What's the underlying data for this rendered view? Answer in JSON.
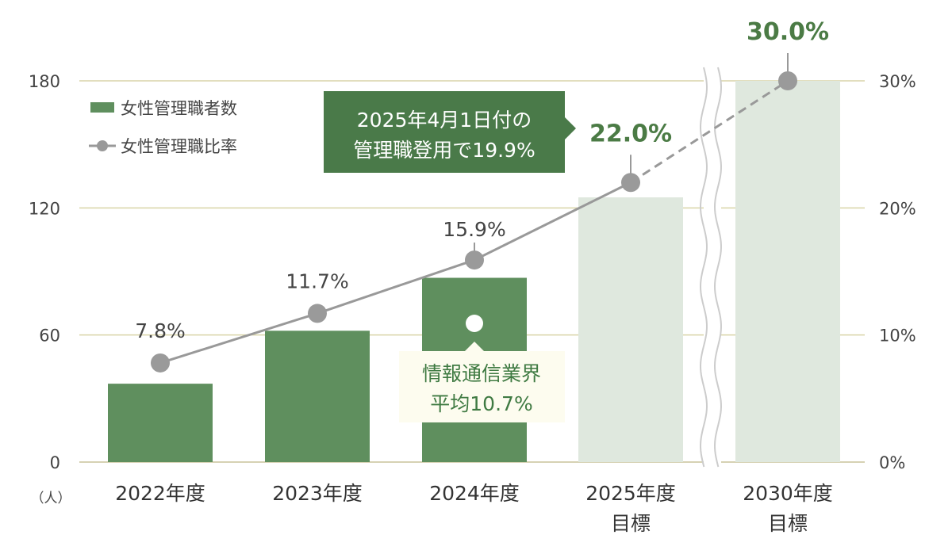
{
  "chart_data": {
    "type": "bar+line",
    "categories": [
      [
        "2022年度"
      ],
      [
        "2023年度"
      ],
      [
        "2024年度"
      ],
      [
        "2025年度",
        "目標"
      ],
      [
        "2030年度",
        "目標"
      ]
    ],
    "is_target": [
      false,
      false,
      false,
      true,
      true
    ],
    "series": [
      {
        "name": "女性管理職者数",
        "type": "bar",
        "axis": "left",
        "values": [
          37,
          62,
          87,
          125,
          180
        ]
      },
      {
        "name": "女性管理職比率",
        "type": "line",
        "axis": "right",
        "values": [
          7.8,
          11.7,
          15.9,
          22.0,
          30.0
        ],
        "labels": [
          "7.8%",
          "11.7%",
          "15.9%",
          "22.0%",
          "30.0%"
        ],
        "dashed_from_index": 3
      }
    ],
    "left_axis": {
      "unit_label": "（人）",
      "ylim": [
        0,
        180
      ],
      "ticks": [
        "0",
        "60",
        "120",
        "180"
      ]
    },
    "right_axis": {
      "ylim": [
        0,
        30
      ],
      "ticks": [
        "0%",
        "10%",
        "20%",
        "30%"
      ]
    },
    "axis_break_between": [
      3,
      4
    ],
    "grid": true,
    "legend": {
      "placement": "top-left",
      "items": [
        "女性管理職者数",
        "女性管理職比率"
      ]
    },
    "annotations": {
      "callout_2025": [
        "2025年4月1日付の",
        "管理職登用で19.9%"
      ],
      "industry_avg": {
        "lines": [
          "情報通信業界",
          "平均10.7%"
        ],
        "value": 10.7,
        "at_index": 2
      }
    },
    "colors": {
      "bar": "#5f8f5e",
      "bar_target": "#dfe8de",
      "line": "#999999",
      "target_label": "#4b7b45",
      "callout_bg": "#4a7a49",
      "avg_bg": "#fdfcef",
      "avg_text": "#3f7a42",
      "grid": "#d9d4a8"
    }
  }
}
